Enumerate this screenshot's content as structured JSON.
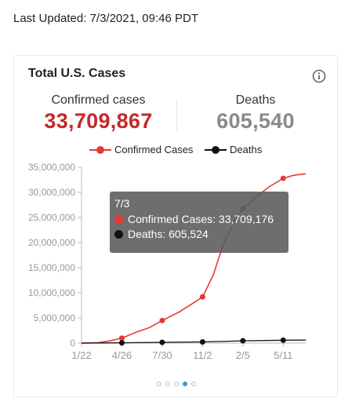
{
  "header": {
    "last_updated": "Last Updated: 7/3/2021, 09:46 PDT"
  },
  "card": {
    "title": "Total U.S. Cases",
    "info_icon": "info-icon",
    "confirmed_label": "Confirmed cases",
    "confirmed_value": "33,709,867",
    "deaths_label": "Deaths",
    "deaths_value": "605,540"
  },
  "colors": {
    "confirmed": "#e53935",
    "deaths": "#111111",
    "confirmed_value": "#c62828",
    "deaths_value": "#8a8a8a",
    "axis": "#bbbbbb",
    "pager_active": "#2f9bd6"
  },
  "tooltip": {
    "date": "7/3",
    "confirmed": "Confirmed Cases: 33,709,176",
    "deaths": "Deaths: 605,524"
  },
  "pager": {
    "count": 5,
    "active_index": 3
  },
  "chart_data": {
    "type": "line",
    "title": "",
    "xlabel": "",
    "ylabel": "",
    "ylim": [
      0,
      35000000
    ],
    "yticks": [
      "35,000,000",
      "30,000,000",
      "25,000,000",
      "20,000,000",
      "15,000,000",
      "10,000,000",
      "5,000,000",
      "0"
    ],
    "ytick_values": [
      35000000,
      30000000,
      25000000,
      20000000,
      15000000,
      10000000,
      5000000,
      0
    ],
    "xticks": [
      "1/22",
      "4/26",
      "7/30",
      "11/2",
      "2/5",
      "5/11"
    ],
    "x_tick_days": [
      0,
      95,
      190,
      285,
      380,
      475
    ],
    "x_max_day": 528,
    "legend_position": "top",
    "grid": false,
    "series": [
      {
        "name": "Confirmed Cases",
        "marker_days": [
          95,
          190,
          285,
          380,
          475
        ],
        "points": [
          [
            0,
            0
          ],
          [
            40,
            100000
          ],
          [
            70,
            500000
          ],
          [
            95,
            1000000
          ],
          [
            130,
            2200000
          ],
          [
            160,
            3100000
          ],
          [
            190,
            4500000
          ],
          [
            230,
            6200000
          ],
          [
            260,
            7800000
          ],
          [
            285,
            9200000
          ],
          [
            310,
            13500000
          ],
          [
            335,
            20000000
          ],
          [
            360,
            24200000
          ],
          [
            380,
            26800000
          ],
          [
            410,
            29000000
          ],
          [
            440,
            31000000
          ],
          [
            475,
            32800000
          ],
          [
            500,
            33400000
          ],
          [
            528,
            33709176
          ]
        ]
      },
      {
        "name": "Deaths",
        "marker_days": [
          95,
          190,
          285,
          380,
          475
        ],
        "points": [
          [
            0,
            0
          ],
          [
            95,
            60000
          ],
          [
            190,
            150000
          ],
          [
            285,
            230000
          ],
          [
            380,
            460000
          ],
          [
            475,
            580000
          ],
          [
            528,
            605524
          ]
        ]
      }
    ]
  }
}
